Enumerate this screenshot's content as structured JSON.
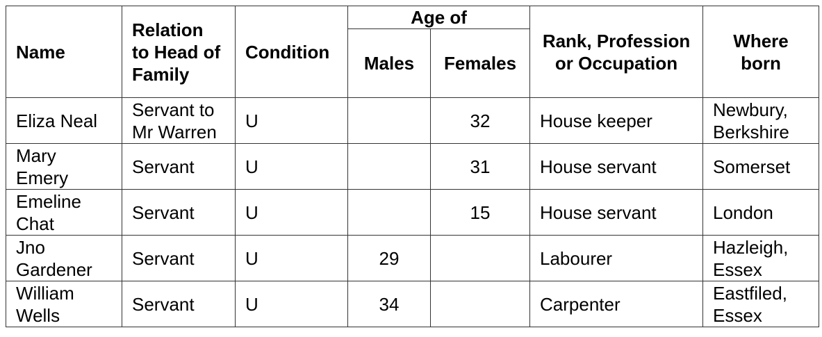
{
  "headers": {
    "name": "Name",
    "relation": "Relation to Head of Family",
    "condition": "Condition",
    "age_of": "Age of",
    "males": "Males",
    "females": "Females",
    "occupation": "Rank, Profession or Occupation",
    "where_born": "Where born"
  },
  "rows": [
    {
      "name": "Eliza Neal",
      "relation": "Servant to Mr Warren",
      "condition": "U",
      "males": "",
      "females": "32",
      "occupation": "House keeper",
      "where_born": "Newbury, Berkshire"
    },
    {
      "name": "Mary Emery",
      "relation": "Servant",
      "condition": "U",
      "males": "",
      "females": "31",
      "occupation": "House servant",
      "where_born": "Somerset"
    },
    {
      "name": "Emeline Chat",
      "relation": "Servant",
      "condition": "U",
      "males": "",
      "females": "15",
      "occupation": "House servant",
      "where_born": "London"
    },
    {
      "name": "Jno Gardener",
      "relation": "Servant",
      "condition": "U",
      "males": "29",
      "females": "",
      "occupation": "Labourer",
      "where_born": "Hazleigh, Essex"
    },
    {
      "name": "William Wells",
      "relation": "Servant",
      "condition": "U",
      "males": "34",
      "females": "",
      "occupation": "Carpenter",
      "where_born": "Eastfiled, Essex"
    }
  ]
}
